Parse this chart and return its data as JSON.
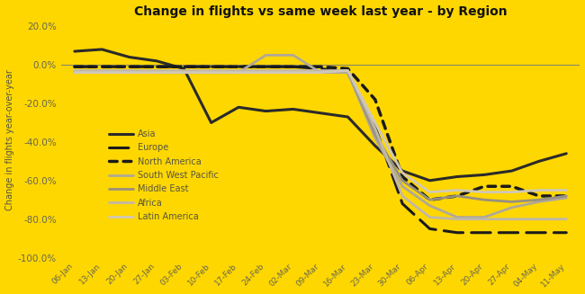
{
  "title": "Change in flights vs same week last year - by Region",
  "ylabel": "Change in flights year-over-year",
  "background_color": "#FFD700",
  "x_labels": [
    "06-Jan",
    "13-Jan",
    "20-Jan",
    "27-Jan",
    "03-Feb",
    "10-Feb",
    "17-Feb",
    "24-Feb",
    "02-Mar",
    "09-Mar",
    "16-Mar",
    "23-Mar",
    "30-Mar",
    "06-Apr",
    "13-Apr",
    "20-Apr",
    "27-Apr",
    "04-May",
    "11-May"
  ],
  "series": {
    "Asia": {
      "color": "#2a2a2a",
      "linewidth": 2.2,
      "linestyle": "solid",
      "values": [
        7,
        8,
        4,
        2,
        -2,
        -30,
        -22,
        -24,
        -23,
        -25,
        -27,
        -42,
        -55,
        -60,
        -58,
        -57,
        -55,
        -50,
        -46
      ]
    },
    "Europe": {
      "color": "#1a1a1a",
      "linewidth": 2.2,
      "linestyle": [
        6,
        3
      ],
      "values": [
        -1,
        -1,
        -1,
        -1,
        -1,
        -1,
        -1,
        -1,
        -1,
        -2,
        -4,
        -32,
        -72,
        -85,
        -87,
        -87,
        -87,
        -87,
        -87
      ]
    },
    "North America": {
      "color": "#1a1a1a",
      "linewidth": 2.5,
      "linestyle": [
        2,
        2
      ],
      "values": [
        -1,
        -1,
        -1,
        -1,
        -1,
        -1,
        -1,
        -1,
        -1,
        -1,
        -2,
        -18,
        -58,
        -70,
        -68,
        -63,
        -63,
        -68,
        -68
      ]
    },
    "South West Pacific": {
      "color": "#b0a898",
      "linewidth": 2.0,
      "linestyle": "solid",
      "values": [
        -3,
        -3,
        -3,
        -4,
        -4,
        -4,
        -4,
        5,
        5,
        -4,
        -4,
        -38,
        -63,
        -73,
        -79,
        -79,
        -74,
        -71,
        -69
      ]
    },
    "Middle East": {
      "color": "#989080",
      "linewidth": 2.0,
      "linestyle": "solid",
      "values": [
        -4,
        -4,
        -4,
        -4,
        -4,
        -4,
        -4,
        -4,
        -4,
        -4,
        -3,
        -36,
        -60,
        -70,
        -68,
        -70,
        -71,
        -70,
        -68
      ]
    },
    "Africa": {
      "color": "#c0b8a8",
      "linewidth": 2.0,
      "linestyle": "solid",
      "values": [
        -3,
        -3,
        -3,
        -3,
        -3,
        -3,
        -3,
        -3,
        -3,
        -3,
        -3,
        -33,
        -68,
        -79,
        -80,
        -80,
        -80,
        -80,
        -80
      ]
    },
    "Latin America": {
      "color": "#d0c8b8",
      "linewidth": 2.0,
      "linestyle": "solid",
      "values": [
        -4,
        -4,
        -4,
        -4,
        -4,
        -4,
        -4,
        -4,
        -4,
        -4,
        -3,
        -30,
        -56,
        -66,
        -65,
        -66,
        -66,
        -65,
        -65
      ]
    }
  },
  "ylim": [
    -100,
    22
  ],
  "yticks": [
    20,
    0,
    -20,
    -40,
    -60,
    -80,
    -100
  ],
  "legend_order": [
    "Asia",
    "Europe",
    "North America",
    "South West Pacific",
    "Middle East",
    "Africa",
    "Latin America"
  ],
  "zeroline_color": "#888866",
  "tick_color": "#666655",
  "label_color": "#555544"
}
